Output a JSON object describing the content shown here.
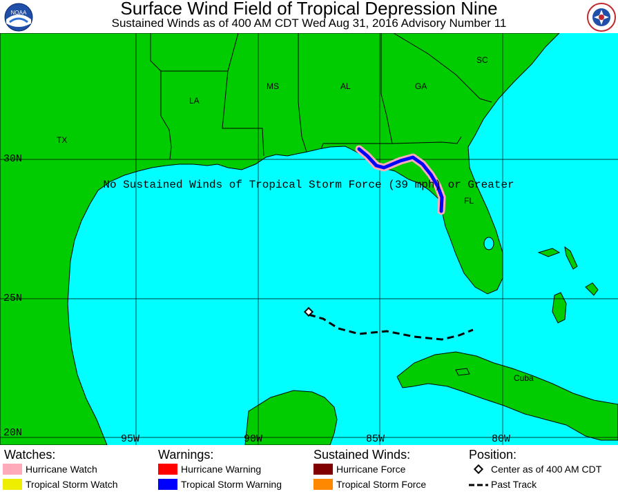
{
  "header": {
    "title": "Surface Wind Field of Tropical Depression Nine",
    "subtitle": "Sustained Winds as of 400 AM CDT Wed Aug 31, 2016    Advisory Number 11",
    "logo_left_text": "NOAA",
    "logo_right_text": "NATIONAL WEATHER SERVICE"
  },
  "map": {
    "notice": "No Sustained Winds of Tropical Storm Force (39 mph) or Greater",
    "state_labels": [
      "SC",
      "MS",
      "AL",
      "GA",
      "LA",
      "TX",
      "FL",
      "Cuba"
    ],
    "lat_labels": [
      "30N",
      "25N",
      "20N"
    ],
    "lon_labels": [
      "95W",
      "90W",
      "85W",
      "80W"
    ],
    "colors": {
      "land": "#00cc00",
      "water": "#00ffff",
      "tropical_storm_warning": "#0000ff",
      "hurricane_watch": "#ffaabb"
    }
  },
  "legend": {
    "watches": {
      "heading": "Watches:",
      "items": [
        {
          "label": "Hurricane Watch",
          "color": "#ffaabb"
        },
        {
          "label": "Tropical Storm Watch",
          "color": "#eeee00"
        }
      ]
    },
    "warnings": {
      "heading": "Warnings:",
      "items": [
        {
          "label": "Hurricane Warning",
          "color": "#ff0000"
        },
        {
          "label": "Tropical Storm Warning",
          "color": "#0000ff"
        }
      ]
    },
    "winds": {
      "heading": "Sustained Winds:",
      "items": [
        {
          "label": "Hurricane Force",
          "color": "#800000"
        },
        {
          "label": "Tropical Storm Force",
          "color": "#ff8800"
        }
      ]
    },
    "position": {
      "heading": "Position:",
      "center_label": "Center as of 400 AM CDT",
      "track_label": "Past Track"
    }
  }
}
